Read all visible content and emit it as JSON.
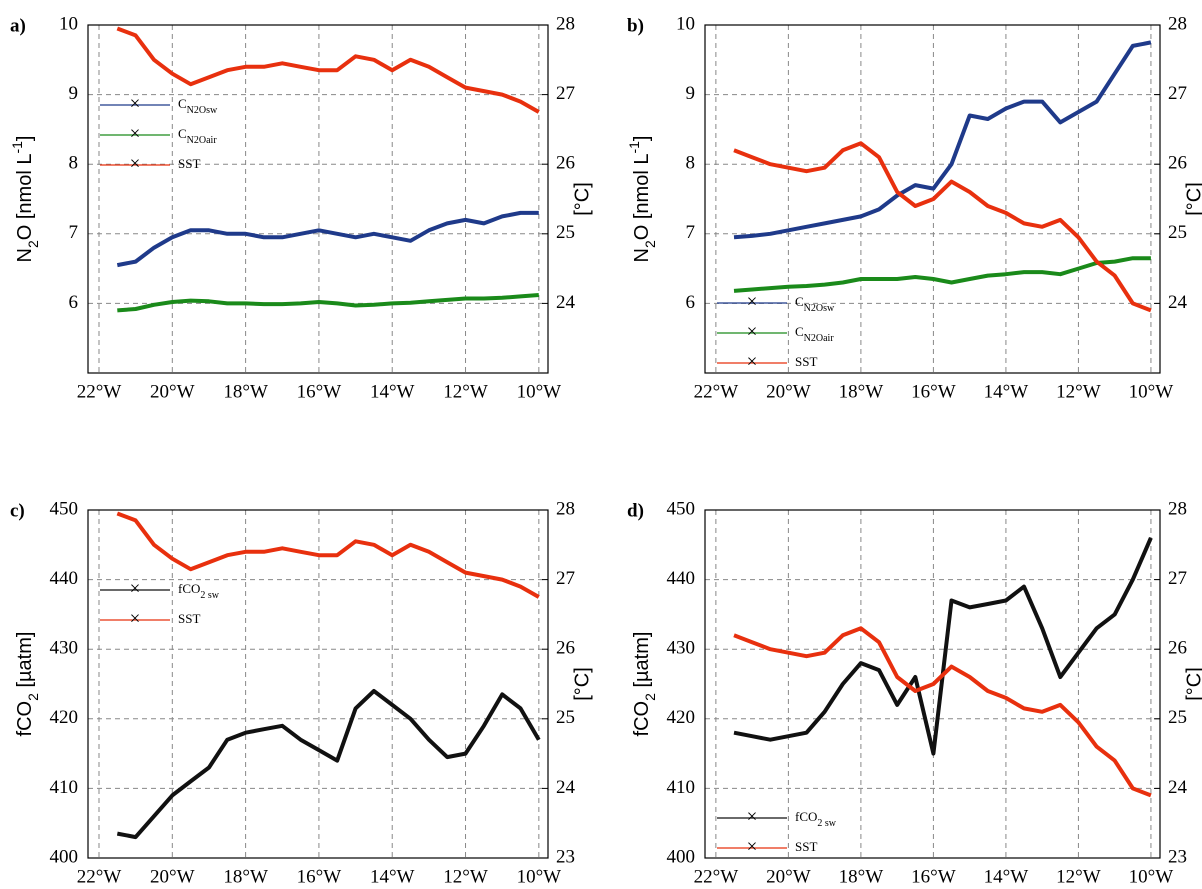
{
  "chart_data": [
    {
      "type": "line",
      "panel_label": "a)",
      "ylabel_parts": [
        "N",
        "2",
        "O [nmol L",
        "-1",
        "]"
      ],
      "y2label": "[°C]",
      "legend": "center left",
      "x": [
        -21.5,
        -21,
        -20.5,
        -20,
        -19.5,
        -19,
        -18.5,
        -18,
        -17.5,
        -17,
        -16.5,
        -16,
        -15.5,
        -15,
        -14.5,
        -14,
        -13.5,
        -13,
        -12.5,
        -12,
        -11.5,
        -11,
        -10.5,
        -10
      ],
      "xlim": [
        -22.3,
        -9.75
      ],
      "ylim": [
        5,
        10
      ],
      "y2lim": [
        23,
        28
      ],
      "xticks": [
        {
          "value": -22,
          "label": "22°W"
        },
        {
          "value": -20,
          "label": "20°W"
        },
        {
          "value": -18,
          "label": "18°W"
        },
        {
          "value": -16,
          "label": "16°W"
        },
        {
          "value": -14,
          "label": "14°W"
        },
        {
          "value": -12,
          "label": "12°W"
        },
        {
          "value": -10,
          "label": "10°W"
        }
      ],
      "yticks": [
        6,
        7,
        8,
        9,
        10
      ],
      "y2ticks": [
        24,
        25,
        26,
        27,
        28
      ],
      "grid": true,
      "series": [
        {
          "name": "C",
          "name_sub": "N2Osw",
          "color": "#1f3a8a",
          "axis": "y",
          "values": [
            6.55,
            6.6,
            6.8,
            6.95,
            7.05,
            7.05,
            7.0,
            7.0,
            6.95,
            6.95,
            7.0,
            7.05,
            7.0,
            6.95,
            7.0,
            6.95,
            6.9,
            7.05,
            7.15,
            7.2,
            7.15,
            7.25,
            7.3,
            7.3
          ]
        },
        {
          "name": "C",
          "name_sub": "N2Oair",
          "color": "#1a8a1a",
          "axis": "y",
          "values": [
            5.9,
            5.92,
            5.98,
            6.02,
            6.04,
            6.03,
            6.0,
            6.0,
            5.99,
            5.99,
            6.0,
            6.02,
            6.0,
            5.97,
            5.98,
            6.0,
            6.01,
            6.03,
            6.05,
            6.07,
            6.07,
            6.08,
            6.1,
            6.12
          ]
        },
        {
          "name": "SST",
          "color": "#e8300e",
          "axis": "y2",
          "values": [
            27.95,
            27.85,
            27.5,
            27.3,
            27.15,
            27.25,
            27.35,
            27.4,
            27.4,
            27.45,
            27.4,
            27.35,
            27.35,
            27.55,
            27.5,
            27.35,
            27.5,
            27.4,
            27.25,
            27.1,
            27.05,
            27.0,
            26.9,
            26.75
          ]
        }
      ]
    },
    {
      "type": "line",
      "panel_label": "b)",
      "ylabel_parts": [
        "N",
        "2",
        "O [nmol L",
        "-1",
        "]"
      ],
      "y2label": "[°C]",
      "legend": "lower left",
      "x": [
        -21.5,
        -21,
        -20.5,
        -20,
        -19.5,
        -19,
        -18.5,
        -18,
        -17.5,
        -17,
        -16.5,
        -16,
        -15.5,
        -15,
        -14.5,
        -14,
        -13.5,
        -13,
        -12.5,
        -12,
        -11.5,
        -11,
        -10.5,
        -10
      ],
      "xlim": [
        -22.3,
        -9.75
      ],
      "ylim": [
        5,
        10
      ],
      "y2lim": [
        23,
        28
      ],
      "xticks": [
        {
          "value": -22,
          "label": "22°W"
        },
        {
          "value": -20,
          "label": "20°W"
        },
        {
          "value": -18,
          "label": "18°W"
        },
        {
          "value": -16,
          "label": "16°W"
        },
        {
          "value": -14,
          "label": "14°W"
        },
        {
          "value": -12,
          "label": "12°W"
        },
        {
          "value": -10,
          "label": "10°W"
        }
      ],
      "yticks": [
        6,
        7,
        8,
        9,
        10
      ],
      "y2ticks": [
        24,
        25,
        26,
        27,
        28
      ],
      "grid": true,
      "series": [
        {
          "name": "C",
          "name_sub": "N2Osw",
          "color": "#1f3a8a",
          "axis": "y",
          "values": [
            6.95,
            6.97,
            7.0,
            7.05,
            7.1,
            7.15,
            7.2,
            7.25,
            7.35,
            7.55,
            7.7,
            7.65,
            8.0,
            8.7,
            8.65,
            8.8,
            8.9,
            8.9,
            8.6,
            8.75,
            8.9,
            9.3,
            9.7,
            9.75
          ]
        },
        {
          "name": "C",
          "name_sub": "N2Oair",
          "color": "#1a8a1a",
          "axis": "y",
          "values": [
            6.18,
            6.2,
            6.22,
            6.24,
            6.25,
            6.27,
            6.3,
            6.35,
            6.35,
            6.35,
            6.38,
            6.35,
            6.3,
            6.35,
            6.4,
            6.42,
            6.45,
            6.45,
            6.42,
            6.5,
            6.58,
            6.6,
            6.65,
            6.65
          ]
        },
        {
          "name": "SST",
          "color": "#e8300e",
          "axis": "y2",
          "values": [
            26.2,
            26.1,
            26.0,
            25.95,
            25.9,
            25.95,
            26.2,
            26.3,
            26.1,
            25.6,
            25.4,
            25.5,
            25.75,
            25.6,
            25.4,
            25.3,
            25.15,
            25.1,
            25.2,
            24.95,
            24.6,
            24.4,
            24.0,
            23.9
          ]
        }
      ]
    },
    {
      "type": "line",
      "panel_label": "c)",
      "ylabel_parts": [
        "fCO",
        "2",
        " [µatm]"
      ],
      "y2label": "[°C]",
      "legend": "center left",
      "x": [
        -21.5,
        -21,
        -20.5,
        -20,
        -19.5,
        -19,
        -18.5,
        -18,
        -17.5,
        -17,
        -16.5,
        -16,
        -15.5,
        -15,
        -14.5,
        -14,
        -13.5,
        -13,
        -12.5,
        -12,
        -11.5,
        -11,
        -10.5,
        -10
      ],
      "xlim": [
        -22.3,
        -9.75
      ],
      "ylim": [
        400,
        450
      ],
      "y2lim": [
        23,
        28
      ],
      "xticks": [
        {
          "value": -22,
          "label": "22°W"
        },
        {
          "value": -20,
          "label": "20°W"
        },
        {
          "value": -18,
          "label": "18°W"
        },
        {
          "value": -16,
          "label": "16°W"
        },
        {
          "value": -14,
          "label": "14°W"
        },
        {
          "value": -12,
          "label": "12°W"
        },
        {
          "value": -10,
          "label": "10°W"
        }
      ],
      "yticks": [
        400,
        410,
        420,
        430,
        440,
        450
      ],
      "y2ticks": [
        23,
        24,
        25,
        26,
        27,
        28
      ],
      "grid": true,
      "series": [
        {
          "name": "fCO",
          "name_sub": "2 sw",
          "color": "#111111",
          "axis": "y",
          "values": [
            403.5,
            403,
            406,
            409,
            411,
            413,
            417,
            418,
            418.5,
            419,
            417,
            415.5,
            414,
            421.5,
            424,
            422,
            420,
            417,
            414.5,
            415,
            419,
            423.5,
            421.5,
            417
          ]
        },
        {
          "name": "SST",
          "color": "#e8300e",
          "axis": "y2",
          "values": [
            27.95,
            27.85,
            27.5,
            27.3,
            27.15,
            27.25,
            27.35,
            27.4,
            27.4,
            27.45,
            27.4,
            27.35,
            27.35,
            27.55,
            27.5,
            27.35,
            27.5,
            27.4,
            27.25,
            27.1,
            27.05,
            27.0,
            26.9,
            26.75
          ]
        }
      ]
    },
    {
      "type": "line",
      "panel_label": "d)",
      "ylabel_parts": [
        "fCO",
        "2",
        " [µatm]"
      ],
      "y2label": "[°C]",
      "legend": "lower left",
      "x": [
        -21.5,
        -21,
        -20.5,
        -20,
        -19.5,
        -19,
        -18.5,
        -18,
        -17.5,
        -17,
        -16.5,
        -16,
        -15.5,
        -15,
        -14.5,
        -14,
        -13.5,
        -13,
        -12.5,
        -12,
        -11.5,
        -11,
        -10.5,
        -10
      ],
      "xlim": [
        -22.3,
        -9.75
      ],
      "ylim": [
        400,
        450
      ],
      "y2lim": [
        23,
        28
      ],
      "xticks": [
        {
          "value": -22,
          "label": "22°W"
        },
        {
          "value": -20,
          "label": "20°W"
        },
        {
          "value": -18,
          "label": "18°W"
        },
        {
          "value": -16,
          "label": "16°W"
        },
        {
          "value": -14,
          "label": "14°W"
        },
        {
          "value": -12,
          "label": "12°W"
        },
        {
          "value": -10,
          "label": "10°W"
        }
      ],
      "yticks": [
        400,
        410,
        420,
        430,
        440,
        450
      ],
      "y2ticks": [
        23,
        24,
        25,
        26,
        27,
        28
      ],
      "grid": true,
      "series": [
        {
          "name": "fCO",
          "name_sub": "2 sw",
          "color": "#111111",
          "axis": "y",
          "values": [
            418,
            417.5,
            417,
            417.5,
            418,
            421,
            425,
            428,
            427,
            422,
            426,
            415,
            437,
            436,
            436.5,
            437,
            439,
            433,
            426,
            429.5,
            433,
            435,
            440,
            446
          ]
        },
        {
          "name": "SST",
          "color": "#e8300e",
          "axis": "y2",
          "values": [
            26.2,
            26.1,
            26.0,
            25.95,
            25.9,
            25.95,
            26.2,
            26.3,
            26.1,
            25.6,
            25.4,
            25.5,
            25.75,
            25.6,
            25.4,
            25.3,
            25.15,
            25.1,
            25.2,
            24.95,
            24.6,
            24.4,
            24.0,
            23.9
          ]
        }
      ]
    }
  ]
}
